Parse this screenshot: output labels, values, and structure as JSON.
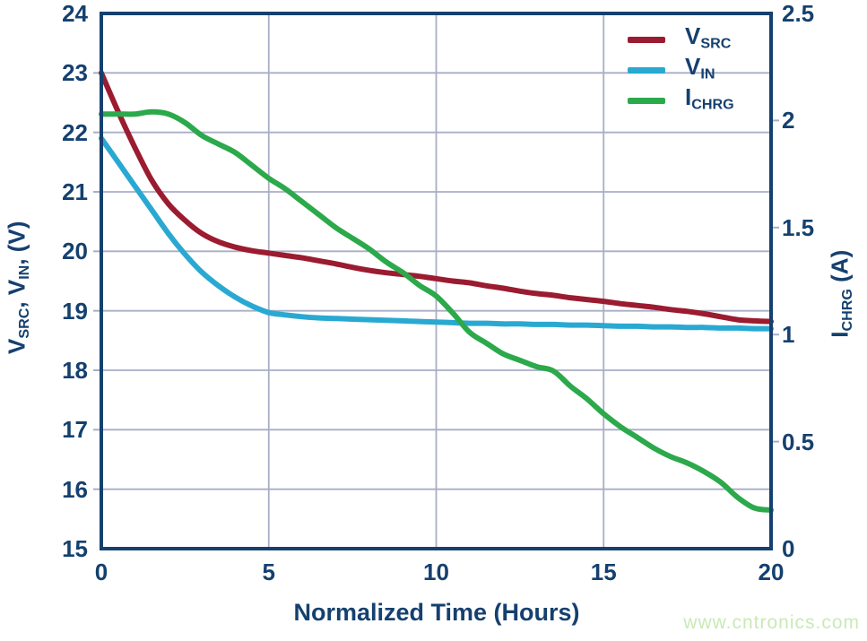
{
  "watermark": "www.cntronics.com",
  "colors": {
    "navy": "#15406f",
    "grid": "#a8aec6",
    "v_src": "#9b1b30",
    "v_in": "#29a9d2",
    "i_chrg": "#2ba94b",
    "watermark": "#c9eab5"
  },
  "legend": [
    {
      "sym": "V",
      "sub": "SRC"
    },
    {
      "sym": "V",
      "sub": "IN"
    },
    {
      "sym": "I",
      "sub": "CHRG"
    }
  ],
  "axes": {
    "left": {
      "sym1": "V",
      "sub1": "SRC",
      "sep1": ", ",
      "sym2": "V",
      "sub2": "IN",
      "sep2": ", (V)",
      "ticks": [
        "24",
        "23",
        "22",
        "21",
        "20",
        "19",
        "18",
        "17",
        "16",
        "15"
      ]
    },
    "right": {
      "sym": "I",
      "sub": "CHRG",
      "unit": " (A)",
      "ticks": [
        "2.5",
        "2",
        "1.5",
        "1",
        "0.5",
        "0"
      ]
    },
    "x": {
      "title": "Normalized Time (Hours)",
      "ticks": [
        "0",
        "5",
        "10",
        "15",
        "20"
      ]
    }
  },
  "chart_data": {
    "type": "line",
    "title": "",
    "xlabel": "Normalized Time (Hours)",
    "ylabel_left": "V_SRC, V_IN, (V)",
    "ylabel_right": "I_CHRG (A)",
    "xlim": [
      0,
      20
    ],
    "ylim_left": [
      15,
      24
    ],
    "ylim_right": [
      0,
      2.5
    ],
    "grid": true,
    "legend_position": "top-right",
    "x": [
      0,
      0.5,
      1,
      1.5,
      2,
      2.5,
      3,
      3.5,
      4,
      4.5,
      5,
      5.5,
      6,
      6.5,
      7,
      7.5,
      8,
      8.5,
      9,
      9.5,
      10,
      10.5,
      11,
      11.5,
      12,
      12.5,
      13,
      13.5,
      14,
      14.5,
      15,
      15.5,
      16,
      16.5,
      17,
      17.5,
      18,
      18.5,
      19,
      19.5,
      20
    ],
    "series": [
      {
        "name": "V_SRC",
        "axis": "left",
        "color": "#9b1b30",
        "values": [
          23.0,
          22.35,
          21.75,
          21.2,
          20.8,
          20.52,
          20.3,
          20.16,
          20.07,
          20.01,
          19.97,
          19.93,
          19.89,
          19.84,
          19.79,
          19.73,
          19.68,
          19.64,
          19.61,
          19.58,
          19.54,
          19.5,
          19.47,
          19.42,
          19.38,
          19.33,
          19.29,
          19.26,
          19.22,
          19.19,
          19.16,
          19.12,
          19.09,
          19.06,
          19.02,
          18.99,
          18.95,
          18.9,
          18.85,
          18.83,
          18.82
        ]
      },
      {
        "name": "V_IN",
        "axis": "left",
        "color": "#29a9d2",
        "values": [
          21.9,
          21.5,
          21.1,
          20.7,
          20.3,
          19.95,
          19.65,
          19.42,
          19.23,
          19.08,
          18.97,
          18.93,
          18.9,
          18.88,
          18.87,
          18.86,
          18.85,
          18.84,
          18.83,
          18.82,
          18.81,
          18.8,
          18.79,
          18.79,
          18.78,
          18.78,
          18.77,
          18.77,
          18.76,
          18.76,
          18.75,
          18.74,
          18.74,
          18.73,
          18.73,
          18.72,
          18.72,
          18.71,
          18.71,
          18.7,
          18.7
        ]
      },
      {
        "name": "I_CHRG",
        "axis": "right",
        "color": "#2ba94b",
        "values": [
          2.03,
          2.03,
          2.03,
          2.04,
          2.03,
          1.99,
          1.93,
          1.89,
          1.85,
          1.79,
          1.73,
          1.68,
          1.62,
          1.56,
          1.5,
          1.45,
          1.4,
          1.34,
          1.29,
          1.23,
          1.18,
          1.1,
          1.01,
          0.96,
          0.91,
          0.88,
          0.85,
          0.83,
          0.76,
          0.7,
          0.63,
          0.57,
          0.52,
          0.47,
          0.43,
          0.4,
          0.36,
          0.31,
          0.24,
          0.19,
          0.18
        ]
      }
    ]
  }
}
